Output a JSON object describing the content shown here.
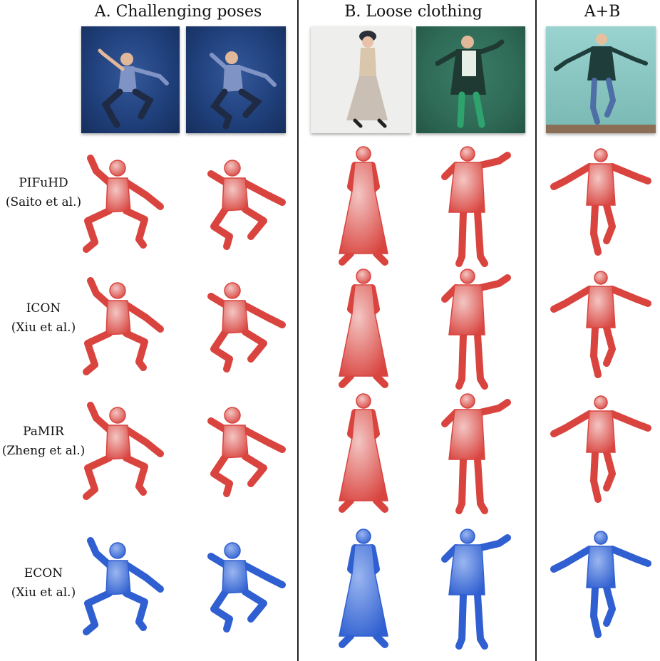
{
  "headers": {
    "a": "A. Challenging poses",
    "b": "B. Loose clothing",
    "ab": "A+B"
  },
  "rows": [
    {
      "name": "PIFuHD",
      "cite": "(Saito et al.)"
    },
    {
      "name": "ICON",
      "cite": "(Xiu et al.)"
    },
    {
      "name": "PaMIR",
      "cite": "(Zheng et al.)"
    },
    {
      "name": "ECON",
      "cite": "(Xiu et al.)"
    }
  ],
  "colors": {
    "baseline_mesh": "#d9443f",
    "baseline_light": "#f3c6c3",
    "econ_mesh": "#2f5fd0",
    "econ_light": "#9ab6f0",
    "photo_blue_bg": "#1f3f7a",
    "photo_white_bg": "#eeeeec",
    "photo_green_bg": "#2f6b57",
    "photo_teal_bg": "#8fcac6"
  }
}
